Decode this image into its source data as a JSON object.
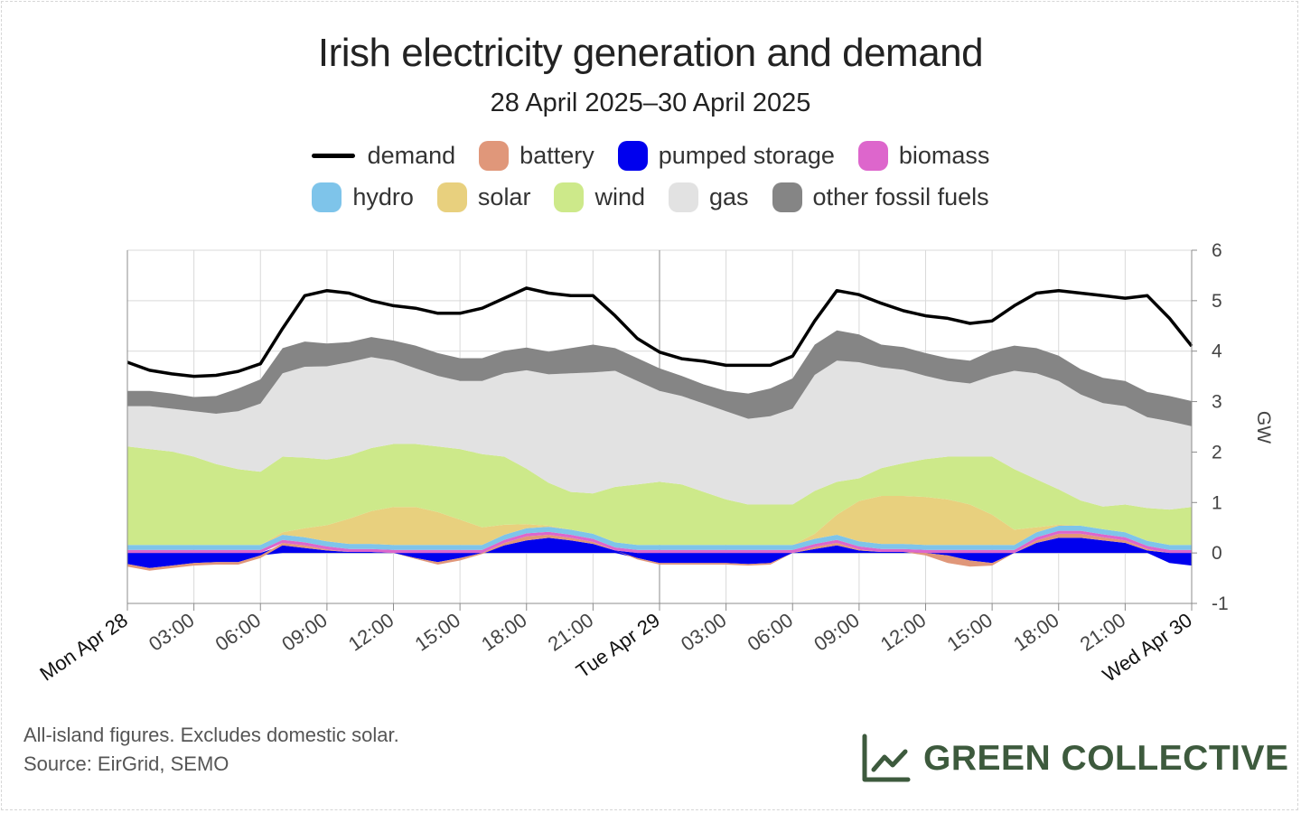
{
  "chart_data": {
    "type": "area",
    "title": "Irish electricity generation and demand",
    "subtitle": "28 April 2025–30 April 2025",
    "ylabel": "GW",
    "ylim": [
      -1,
      6
    ],
    "y_ticks": [
      "-1",
      "0",
      "1",
      "2",
      "3",
      "4",
      "5",
      "6"
    ],
    "x_ticks": [
      "Mon Apr 28",
      "03:00",
      "06:00",
      "09:00",
      "12:00",
      "15:00",
      "18:00",
      "21:00",
      "Tue Apr 29",
      "03:00",
      "06:00",
      "09:00",
      "12:00",
      "15:00",
      "18:00",
      "21:00",
      "Wed Apr 30"
    ],
    "x_range_hours": [
      0,
      48
    ],
    "x_hours": [
      0,
      1,
      2,
      3,
      4,
      5,
      6,
      7,
      8,
      9,
      10,
      11,
      12,
      13,
      14,
      15,
      16,
      17,
      18,
      19,
      20,
      21,
      22,
      23,
      24,
      25,
      26,
      27,
      28,
      29,
      30,
      31,
      32,
      33,
      34,
      35,
      36,
      37,
      38,
      39,
      40,
      41,
      42,
      43,
      44,
      45,
      46,
      47,
      48
    ],
    "demand": [
      3.78,
      3.62,
      3.55,
      3.5,
      3.52,
      3.6,
      3.75,
      4.45,
      5.1,
      5.2,
      5.15,
      5.0,
      4.9,
      4.85,
      4.75,
      4.75,
      4.85,
      5.05,
      5.25,
      5.15,
      5.1,
      5.1,
      4.7,
      4.25,
      3.98,
      3.85,
      3.8,
      3.72,
      3.72,
      3.72,
      3.9,
      4.6,
      5.2,
      5.12,
      4.95,
      4.8,
      4.7,
      4.65,
      4.55,
      4.6,
      4.9,
      5.15,
      5.2,
      5.15,
      5.1,
      5.05,
      5.1,
      4.65,
      4.1
    ],
    "series": [
      {
        "name": "pumped storage",
        "color": "#0000ee",
        "values": [
          -0.22,
          -0.3,
          -0.25,
          -0.2,
          -0.18,
          -0.18,
          -0.05,
          0.15,
          0.1,
          0.05,
          0.02,
          0.02,
          0.0,
          -0.1,
          -0.18,
          -0.1,
          0.0,
          0.15,
          0.25,
          0.3,
          0.25,
          0.18,
          0.05,
          -0.1,
          -0.2,
          -0.2,
          -0.2,
          -0.2,
          -0.22,
          -0.2,
          0.0,
          0.08,
          0.15,
          0.05,
          0.02,
          0.02,
          0.0,
          -0.05,
          -0.15,
          -0.2,
          0.0,
          0.2,
          0.3,
          0.3,
          0.25,
          0.2,
          0.05,
          -0.2,
          -0.25
        ]
      },
      {
        "name": "battery",
        "color": "#e0977a",
        "values": [
          -0.05,
          -0.05,
          -0.05,
          -0.05,
          -0.05,
          -0.05,
          -0.05,
          0.05,
          0.05,
          0.02,
          0.0,
          0.0,
          0.0,
          -0.02,
          -0.05,
          -0.05,
          -0.02,
          0.05,
          0.08,
          0.06,
          0.05,
          0.04,
          0.0,
          -0.03,
          -0.03,
          -0.03,
          -0.03,
          -0.03,
          -0.03,
          -0.03,
          0.0,
          0.04,
          0.05,
          0.02,
          0.0,
          0.0,
          -0.05,
          -0.15,
          -0.12,
          -0.05,
          0.0,
          0.05,
          0.08,
          0.08,
          0.06,
          0.05,
          0.03,
          0.0,
          0.0
        ]
      },
      {
        "name": "biomass",
        "color": "#dd66cc",
        "values": [
          0.06,
          0.06,
          0.06,
          0.06,
          0.06,
          0.06,
          0.06,
          0.06,
          0.06,
          0.06,
          0.06,
          0.06,
          0.06,
          0.06,
          0.06,
          0.06,
          0.06,
          0.06,
          0.06,
          0.06,
          0.06,
          0.06,
          0.06,
          0.06,
          0.06,
          0.06,
          0.06,
          0.06,
          0.06,
          0.06,
          0.06,
          0.06,
          0.06,
          0.06,
          0.06,
          0.06,
          0.06,
          0.06,
          0.06,
          0.06,
          0.06,
          0.06,
          0.06,
          0.06,
          0.06,
          0.06,
          0.06,
          0.06,
          0.06
        ]
      },
      {
        "name": "hydro",
        "color": "#7ec4ea",
        "values": [
          0.1,
          0.1,
          0.1,
          0.1,
          0.1,
          0.1,
          0.1,
          0.1,
          0.1,
          0.1,
          0.1,
          0.1,
          0.1,
          0.1,
          0.1,
          0.1,
          0.1,
          0.1,
          0.1,
          0.1,
          0.1,
          0.1,
          0.1,
          0.1,
          0.1,
          0.1,
          0.1,
          0.1,
          0.1,
          0.1,
          0.1,
          0.1,
          0.1,
          0.1,
          0.1,
          0.1,
          0.1,
          0.1,
          0.1,
          0.1,
          0.1,
          0.1,
          0.1,
          0.1,
          0.1,
          0.1,
          0.1,
          0.1,
          0.1
        ]
      },
      {
        "name": "solar",
        "color": "#e8d07e",
        "values": [
          0,
          0,
          0,
          0,
          0,
          0,
          0,
          0.05,
          0.18,
          0.32,
          0.5,
          0.65,
          0.75,
          0.75,
          0.65,
          0.5,
          0.35,
          0.2,
          0.08,
          0.02,
          0,
          0,
          0,
          0,
          0,
          0,
          0,
          0,
          0,
          0,
          0,
          0.1,
          0.4,
          0.8,
          0.95,
          0.95,
          0.95,
          0.9,
          0.8,
          0.6,
          0.3,
          0.1,
          0.02,
          0,
          0,
          0,
          0,
          0,
          0
        ]
      },
      {
        "name": "wind",
        "color": "#cde98a",
        "values": [
          1.95,
          1.9,
          1.85,
          1.75,
          1.6,
          1.5,
          1.45,
          1.5,
          1.4,
          1.3,
          1.25,
          1.25,
          1.25,
          1.25,
          1.3,
          1.4,
          1.45,
          1.35,
          1.1,
          0.85,
          0.75,
          0.8,
          1.1,
          1.2,
          1.25,
          1.2,
          1.05,
          0.9,
          0.8,
          0.8,
          0.8,
          0.85,
          0.65,
          0.45,
          0.55,
          0.65,
          0.75,
          0.85,
          0.95,
          1.15,
          1.2,
          0.95,
          0.7,
          0.5,
          0.45,
          0.55,
          0.65,
          0.7,
          0.75
        ]
      },
      {
        "name": "gas",
        "color": "#e2e2e2",
        "values": [
          0.8,
          0.85,
          0.85,
          0.9,
          1.0,
          1.15,
          1.35,
          1.65,
          1.8,
          1.85,
          1.85,
          1.8,
          1.65,
          1.5,
          1.4,
          1.35,
          1.45,
          1.65,
          1.95,
          2.15,
          2.35,
          2.4,
          2.3,
          2.05,
          1.8,
          1.75,
          1.75,
          1.75,
          1.7,
          1.75,
          1.9,
          2.3,
          2.4,
          2.3,
          2.0,
          1.85,
          1.65,
          1.5,
          1.45,
          1.6,
          1.95,
          2.1,
          2.15,
          2.1,
          2.05,
          1.95,
          1.8,
          1.75,
          1.6
        ]
      },
      {
        "name": "other fossil fuels",
        "color": "#858585",
        "values": [
          0.3,
          0.3,
          0.3,
          0.28,
          0.35,
          0.45,
          0.48,
          0.5,
          0.5,
          0.45,
          0.4,
          0.4,
          0.4,
          0.45,
          0.45,
          0.45,
          0.45,
          0.45,
          0.45,
          0.45,
          0.5,
          0.55,
          0.45,
          0.45,
          0.45,
          0.4,
          0.38,
          0.4,
          0.5,
          0.55,
          0.6,
          0.6,
          0.6,
          0.55,
          0.45,
          0.45,
          0.45,
          0.45,
          0.45,
          0.5,
          0.5,
          0.5,
          0.5,
          0.5,
          0.5,
          0.5,
          0.5,
          0.5,
          0.5
        ]
      }
    ],
    "legend": [
      {
        "label": "demand",
        "color": "#000000",
        "kind": "line"
      },
      {
        "label": "battery",
        "color": "#e0977a",
        "kind": "area"
      },
      {
        "label": "pumped storage",
        "color": "#0000ee",
        "kind": "area"
      },
      {
        "label": "biomass",
        "color": "#dd66cc",
        "kind": "area"
      },
      {
        "label": "hydro",
        "color": "#7ec4ea",
        "kind": "area"
      },
      {
        "label": "solar",
        "color": "#e8d07e",
        "kind": "area"
      },
      {
        "label": "wind",
        "color": "#cde98a",
        "kind": "area"
      },
      {
        "label": "gas",
        "color": "#e2e2e2",
        "kind": "area"
      },
      {
        "label": "other fossil fuels",
        "color": "#858585",
        "kind": "area"
      }
    ],
    "legend_placement": "top-center",
    "grid": true
  },
  "footnote": {
    "line1": "All-island figures. Excludes domestic solar.",
    "line2": "Source: EirGrid, SEMO"
  },
  "brand": {
    "name": "GREEN COLLECTIVE",
    "color": "#3d5a3d",
    "icon": "line-chart-icon"
  }
}
